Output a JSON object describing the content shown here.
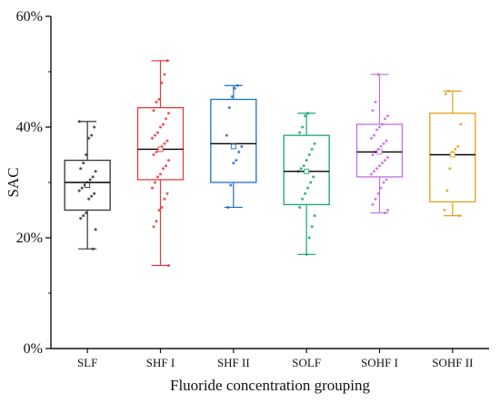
{
  "chart_data": {
    "type": "box",
    "xlabel": "Fluoride concentration grouping",
    "ylabel": "SAC",
    "ylim": [
      0,
      60
    ],
    "y_ticks": [
      0,
      20,
      40,
      60
    ],
    "y_tick_labels": [
      "0%",
      "20%",
      "40%",
      "60%"
    ],
    "grid": false,
    "categories": [
      "SLF",
      "SHF I",
      "SHF II",
      "SOLF",
      "SOHF I",
      "SOHF II"
    ],
    "colors": [
      "#333333",
      "#e8393a",
      "#1f6fc3",
      "#17a673",
      "#c46ee0",
      "#e0a11b"
    ],
    "series": [
      {
        "category": "SLF",
        "whisker_low": 18.0,
        "q1": 25.0,
        "median": 30.0,
        "q3": 34.0,
        "whisker_high": 41.0,
        "mean": 29.5,
        "points": [
          41,
          40,
          38.5,
          38,
          35,
          33.5,
          32.5,
          32,
          31,
          30.5,
          30,
          29.5,
          29,
          28.5,
          28,
          27.5,
          27,
          24.5,
          24,
          23.5,
          21.5,
          18
        ]
      },
      {
        "category": "SHF I",
        "whisker_low": 15.0,
        "q1": 30.5,
        "median": 36.0,
        "q3": 43.5,
        "whisker_high": 52.0,
        "mean": 36.0,
        "points": [
          52,
          49.5,
          48,
          45,
          44.5,
          43,
          42.5,
          41.5,
          40.5,
          40,
          39,
          38.5,
          38,
          37.5,
          37,
          36.5,
          36,
          35.5,
          35,
          34,
          33,
          32.5,
          31.5,
          31,
          30,
          29,
          28,
          27,
          25.5,
          25,
          23,
          22,
          15
        ]
      },
      {
        "category": "SHF II",
        "whisker_low": 25.5,
        "q1": 30.0,
        "median": 37.0,
        "q3": 45.0,
        "whisker_high": 47.5,
        "mean": 36.5,
        "points": [
          47.5,
          47,
          45.5,
          43.5,
          38.5,
          36.5,
          35.5,
          34,
          33.5,
          29.5,
          25.5
        ]
      },
      {
        "category": "SOLF",
        "whisker_low": 17.0,
        "q1": 26.0,
        "median": 32.0,
        "q3": 38.5,
        "whisker_high": 42.5,
        "mean": 32.0,
        "points": [
          42.5,
          42,
          40,
          39,
          37,
          36,
          35,
          34,
          33,
          32.5,
          32,
          31,
          30,
          29,
          28,
          27,
          25.5,
          24,
          22,
          20,
          17
        ]
      },
      {
        "category": "SOHF I",
        "whisker_low": 24.5,
        "q1": 31.0,
        "median": 35.5,
        "q3": 40.5,
        "whisker_high": 49.5,
        "mean": 35.5,
        "points": [
          49.5,
          44.5,
          43,
          42,
          41.5,
          40.5,
          40,
          39.5,
          38.5,
          38,
          37.5,
          37,
          36.5,
          36,
          35.5,
          35,
          34.5,
          34,
          33.5,
          33,
          32.5,
          32,
          31.5,
          30.5,
          30,
          29,
          28,
          27,
          26,
          25,
          24.5
        ]
      },
      {
        "category": "SOHF II",
        "whisker_low": 24.0,
        "q1": 26.5,
        "median": 35.0,
        "q3": 42.5,
        "whisker_high": 46.5,
        "mean": 35.0,
        "points": [
          46.5,
          46,
          40.5,
          36.5,
          36,
          35.5,
          32.5,
          28.5,
          25,
          24
        ]
      }
    ]
  }
}
